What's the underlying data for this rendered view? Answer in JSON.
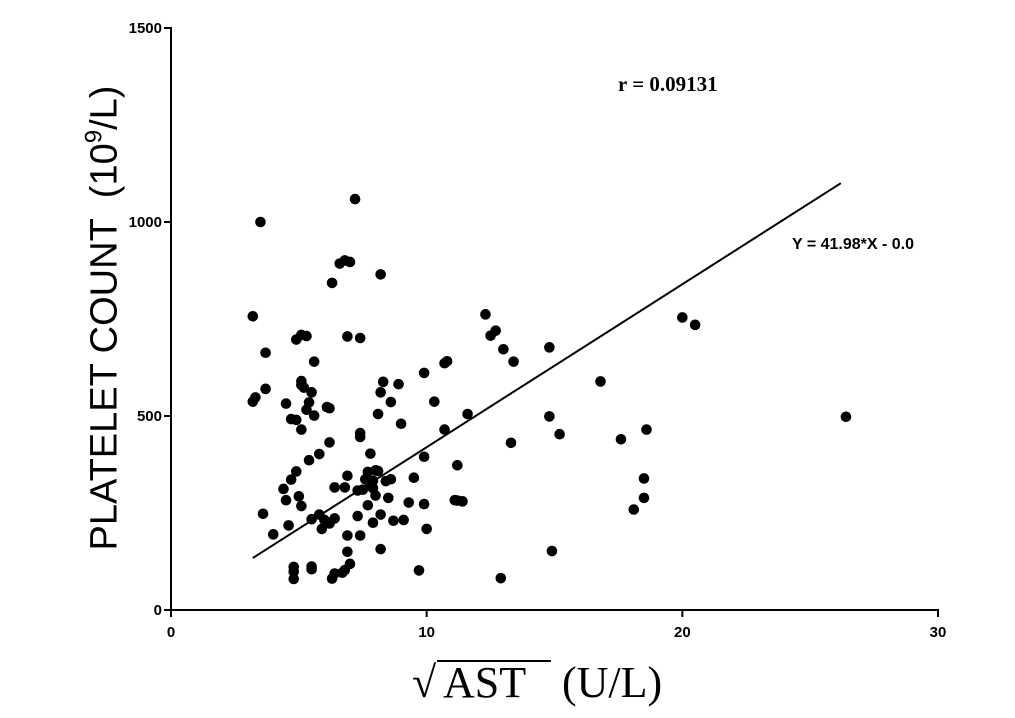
{
  "chart_data": {
    "type": "scatter",
    "ylabel_main": "PLATELET COUNT",
    "ylabel_unit_pre": "(10",
    "ylabel_unit_exp": "9",
    "ylabel_unit_post": "/L)",
    "xlabel_main": "AST",
    "xlabel_unit": "(U/L)",
    "xlabel_radical": "√",
    "xlim": [
      0,
      30
    ],
    "ylim": [
      0,
      1500
    ],
    "xticks": [
      0,
      10,
      20,
      30
    ],
    "yticks": [
      0,
      500,
      1000,
      1500
    ],
    "grid": false,
    "annotation_r": "r = 0.09131",
    "annotation_equation": "Y = 41.98*X - 0.0",
    "regression_line": {
      "x": [
        3.2,
        26.2
      ],
      "y": [
        134,
        1100
      ]
    },
    "points": [
      {
        "x": 3.2,
        "y": 757
      },
      {
        "x": 3.5,
        "y": 1000
      },
      {
        "x": 3.7,
        "y": 663
      },
      {
        "x": 3.2,
        "y": 537
      },
      {
        "x": 3.3,
        "y": 548
      },
      {
        "x": 3.7,
        "y": 570
      },
      {
        "x": 3.6,
        "y": 248
      },
      {
        "x": 4.0,
        "y": 195
      },
      {
        "x": 4.4,
        "y": 312
      },
      {
        "x": 4.5,
        "y": 532
      },
      {
        "x": 4.5,
        "y": 283
      },
      {
        "x": 4.6,
        "y": 218
      },
      {
        "x": 4.7,
        "y": 492
      },
      {
        "x": 4.7,
        "y": 336
      },
      {
        "x": 4.8,
        "y": 111
      },
      {
        "x": 4.8,
        "y": 99
      },
      {
        "x": 4.8,
        "y": 80
      },
      {
        "x": 4.9,
        "y": 697
      },
      {
        "x": 4.9,
        "y": 490
      },
      {
        "x": 4.9,
        "y": 357
      },
      {
        "x": 5.0,
        "y": 293
      },
      {
        "x": 5.1,
        "y": 709
      },
      {
        "x": 5.1,
        "y": 590
      },
      {
        "x": 5.1,
        "y": 580
      },
      {
        "x": 5.1,
        "y": 465
      },
      {
        "x": 5.1,
        "y": 268
      },
      {
        "x": 5.2,
        "y": 573
      },
      {
        "x": 5.3,
        "y": 706
      },
      {
        "x": 5.3,
        "y": 516
      },
      {
        "x": 5.4,
        "y": 386
      },
      {
        "x": 5.4,
        "y": 535
      },
      {
        "x": 5.5,
        "y": 561
      },
      {
        "x": 5.5,
        "y": 234
      },
      {
        "x": 5.5,
        "y": 112
      },
      {
        "x": 5.5,
        "y": 105
      },
      {
        "x": 5.6,
        "y": 640
      },
      {
        "x": 5.6,
        "y": 501
      },
      {
        "x": 5.8,
        "y": 402
      },
      {
        "x": 5.8,
        "y": 246
      },
      {
        "x": 5.9,
        "y": 209
      },
      {
        "x": 6.0,
        "y": 232
      },
      {
        "x": 6.1,
        "y": 523
      },
      {
        "x": 6.2,
        "y": 520
      },
      {
        "x": 6.2,
        "y": 432
      },
      {
        "x": 6.2,
        "y": 223
      },
      {
        "x": 6.3,
        "y": 843
      },
      {
        "x": 6.3,
        "y": 81
      },
      {
        "x": 6.4,
        "y": 316
      },
      {
        "x": 6.4,
        "y": 236
      },
      {
        "x": 6.4,
        "y": 94
      },
      {
        "x": 6.6,
        "y": 893
      },
      {
        "x": 6.7,
        "y": 96
      },
      {
        "x": 6.8,
        "y": 901
      },
      {
        "x": 6.8,
        "y": 316
      },
      {
        "x": 6.8,
        "y": 103
      },
      {
        "x": 6.9,
        "y": 705
      },
      {
        "x": 6.9,
        "y": 346
      },
      {
        "x": 6.9,
        "y": 192
      },
      {
        "x": 6.9,
        "y": 150
      },
      {
        "x": 7.0,
        "y": 897
      },
      {
        "x": 7.0,
        "y": 119
      },
      {
        "x": 7.2,
        "y": 1059
      },
      {
        "x": 7.3,
        "y": 308
      },
      {
        "x": 7.3,
        "y": 242
      },
      {
        "x": 7.4,
        "y": 701
      },
      {
        "x": 7.4,
        "y": 456
      },
      {
        "x": 7.4,
        "y": 446
      },
      {
        "x": 7.4,
        "y": 192
      },
      {
        "x": 7.5,
        "y": 310
      },
      {
        "x": 7.6,
        "y": 337
      },
      {
        "x": 7.7,
        "y": 356
      },
      {
        "x": 7.7,
        "y": 270
      },
      {
        "x": 7.8,
        "y": 403
      },
      {
        "x": 7.8,
        "y": 321
      },
      {
        "x": 7.9,
        "y": 333
      },
      {
        "x": 7.9,
        "y": 314
      },
      {
        "x": 7.9,
        "y": 225
      },
      {
        "x": 8.0,
        "y": 360
      },
      {
        "x": 8.0,
        "y": 295
      },
      {
        "x": 8.1,
        "y": 505
      },
      {
        "x": 8.1,
        "y": 358
      },
      {
        "x": 8.2,
        "y": 865
      },
      {
        "x": 8.2,
        "y": 561
      },
      {
        "x": 8.2,
        "y": 246
      },
      {
        "x": 8.2,
        "y": 157
      },
      {
        "x": 8.3,
        "y": 588
      },
      {
        "x": 8.4,
        "y": 332
      },
      {
        "x": 8.5,
        "y": 289
      },
      {
        "x": 8.6,
        "y": 536
      },
      {
        "x": 8.6,
        "y": 337
      },
      {
        "x": 8.7,
        "y": 230
      },
      {
        "x": 8.9,
        "y": 582
      },
      {
        "x": 9.0,
        "y": 480
      },
      {
        "x": 9.1,
        "y": 232
      },
      {
        "x": 9.3,
        "y": 277
      },
      {
        "x": 9.5,
        "y": 341
      },
      {
        "x": 9.7,
        "y": 102
      },
      {
        "x": 9.9,
        "y": 611
      },
      {
        "x": 9.9,
        "y": 395
      },
      {
        "x": 9.9,
        "y": 273
      },
      {
        "x": 10.0,
        "y": 209
      },
      {
        "x": 10.3,
        "y": 537
      },
      {
        "x": 10.7,
        "y": 636
      },
      {
        "x": 10.7,
        "y": 465
      },
      {
        "x": 10.8,
        "y": 641
      },
      {
        "x": 11.1,
        "y": 283
      },
      {
        "x": 11.2,
        "y": 373
      },
      {
        "x": 11.2,
        "y": 282
      },
      {
        "x": 11.4,
        "y": 280
      },
      {
        "x": 11.6,
        "y": 505
      },
      {
        "x": 12.3,
        "y": 762
      },
      {
        "x": 12.5,
        "y": 707
      },
      {
        "x": 12.7,
        "y": 720
      },
      {
        "x": 12.9,
        "y": 82
      },
      {
        "x": 13.0,
        "y": 672
      },
      {
        "x": 13.3,
        "y": 431
      },
      {
        "x": 13.4,
        "y": 640
      },
      {
        "x": 14.8,
        "y": 677
      },
      {
        "x": 14.8,
        "y": 499
      },
      {
        "x": 14.9,
        "y": 152
      },
      {
        "x": 15.2,
        "y": 453
      },
      {
        "x": 16.8,
        "y": 589
      },
      {
        "x": 17.6,
        "y": 440
      },
      {
        "x": 18.1,
        "y": 259
      },
      {
        "x": 18.5,
        "y": 339
      },
      {
        "x": 18.5,
        "y": 289
      },
      {
        "x": 18.6,
        "y": 465
      },
      {
        "x": 20.0,
        "y": 754
      },
      {
        "x": 20.5,
        "y": 735
      },
      {
        "x": 26.4,
        "y": 498
      }
    ]
  }
}
